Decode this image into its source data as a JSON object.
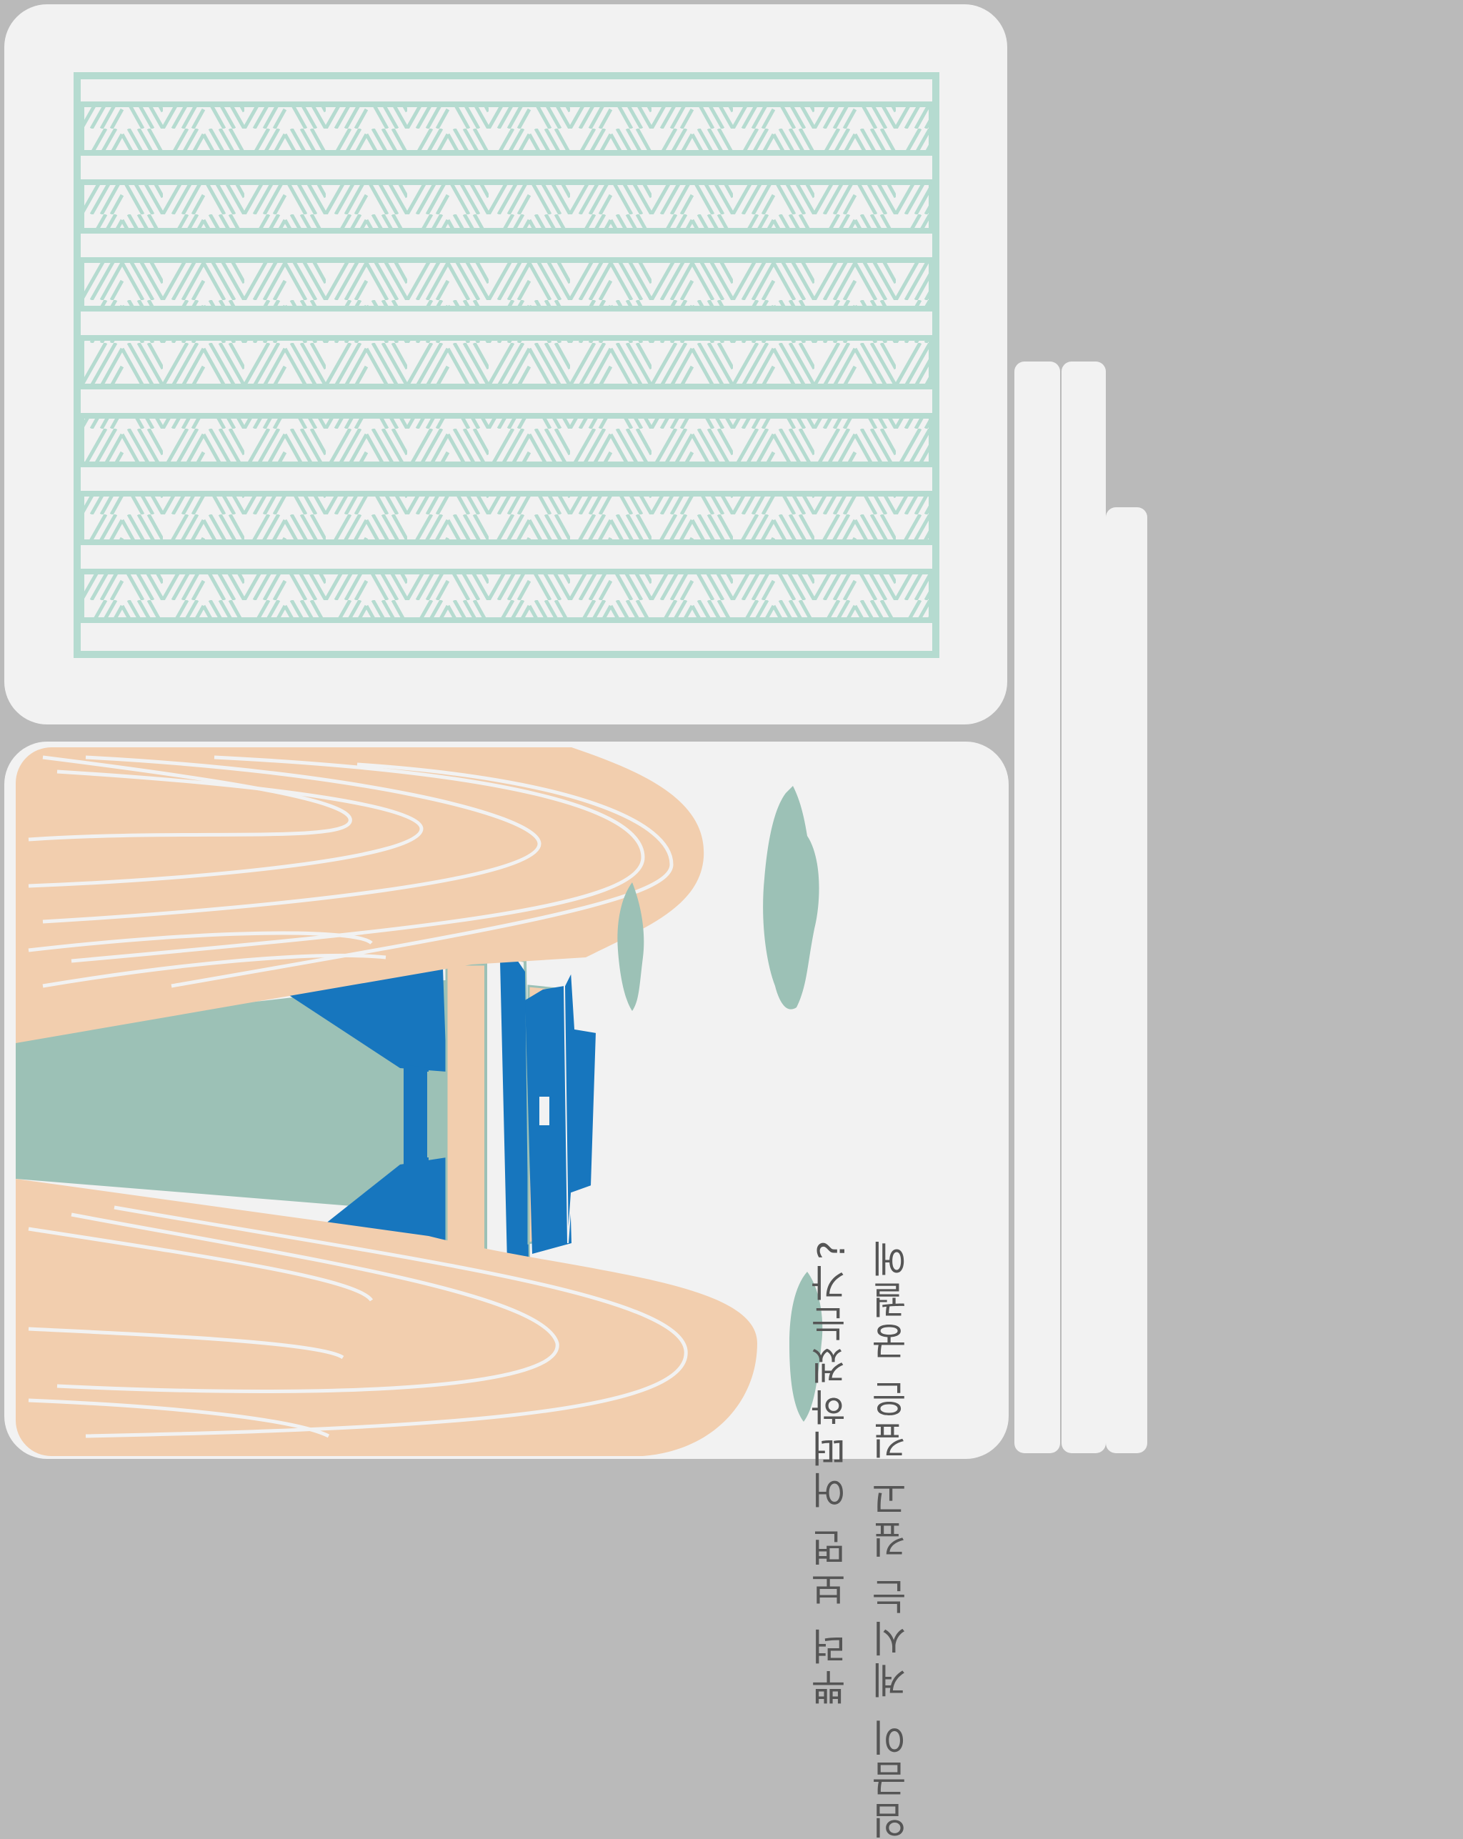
{
  "palette": {
    "background": "#bababa",
    "panel": "#f2f2f2",
    "mint": "#b5dbd0",
    "peach": "#f2ceae",
    "sage": "#9cc1b6",
    "blue": "#1776be",
    "text": "#555555"
  },
  "back_panel": {
    "pattern": "mint lattice of seven zigzag-hatched bands"
  },
  "front_panel": {
    "illustration": "peach stylised rocks framing a blue-roofed palace with sage trees",
    "poem": {
      "line_1": "임금이 계시는 깊고 깊은 궁궐에",
      "line_2": "뿌려 보면 어떠하겠는가?"
    }
  }
}
